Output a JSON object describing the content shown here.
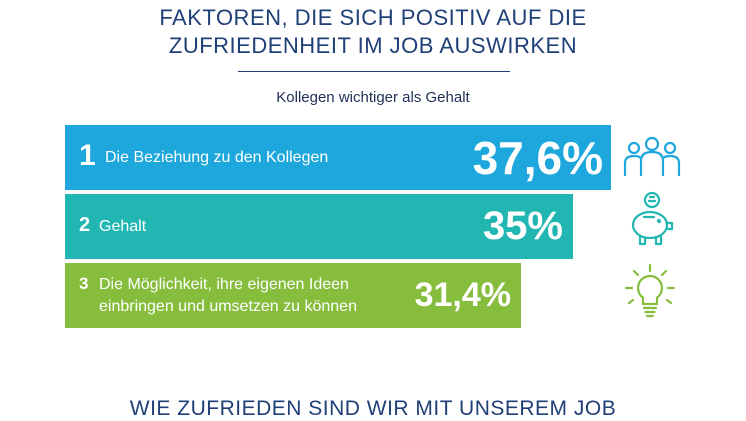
{
  "header": {
    "title_line1": "FAKTOREN, DIE SICH POSITIV AUF DIE",
    "title_line2": "ZUFRIEDENHEIT IM JOB AUSWIRKEN",
    "subtitle": "Kollegen wichtiger als Gehalt"
  },
  "colors": {
    "bar_1": "#1ea7dd",
    "bar_2": "#21b6b2",
    "bar_3": "#86bd3d",
    "title": "#1f3f77"
  },
  "icons": [
    "people-group-icon",
    "piggy-bank-icon",
    "lightbulb-icon"
  ],
  "chart_data": {
    "type": "bar",
    "orientation": "horizontal",
    "categories": [
      "Die Beziehung zu den Kollegen",
      "Gehalt",
      "Die Möglichkeit, ihre eigenen Ideen einbringen und umsetzen zu können"
    ],
    "label_lines": [
      [
        "Die Beziehung zu den Kollegen"
      ],
      [
        "Gehalt"
      ],
      [
        "Die Möglichkeit, ihre eigenen Ideen",
        "einbringen und umsetzen zu können"
      ]
    ],
    "ranks": [
      "1",
      "2",
      "3"
    ],
    "values": [
      37.6,
      35,
      31.4
    ],
    "value_labels": [
      "37,6%",
      "35%",
      "31,4%"
    ],
    "unit": "%"
  },
  "footer": {
    "next_title": "WIE ZUFRIEDEN SIND WIR MIT UNSEREM JOB"
  }
}
